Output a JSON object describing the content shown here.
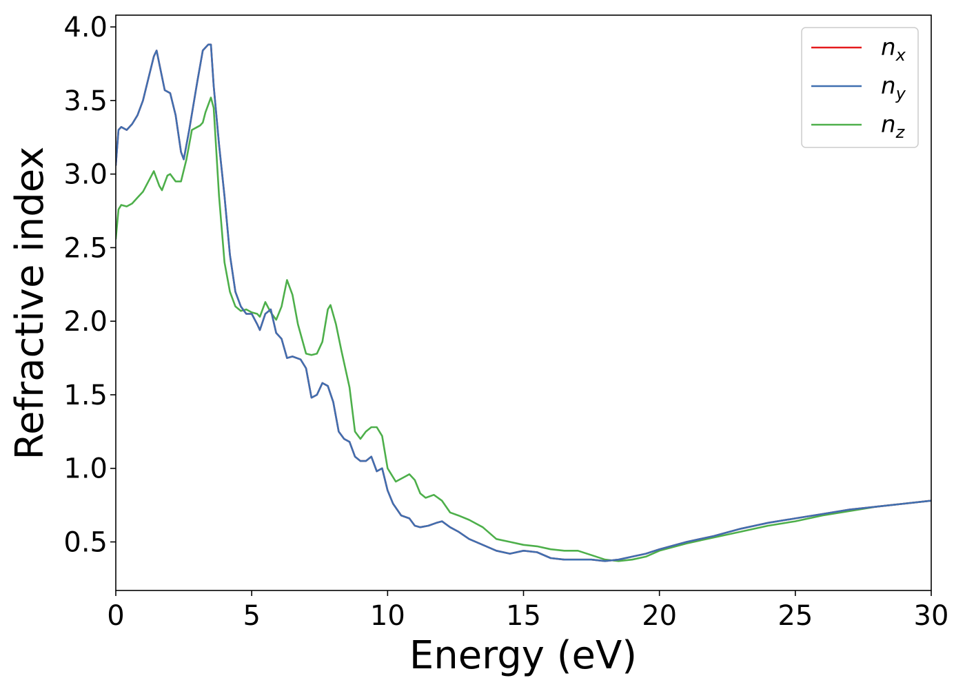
{
  "chart_data": {
    "type": "line",
    "title": "",
    "xlabel": "Energy (eV)",
    "ylabel": "Refractive index",
    "xlim": [
      0,
      30
    ],
    "ylim": [
      0.17,
      4.08
    ],
    "xticks": [
      0,
      5,
      10,
      15,
      20,
      25,
      30
    ],
    "xtick_labels": [
      "0",
      "5",
      "10",
      "15",
      "20",
      "25",
      "30"
    ],
    "yticks": [
      0.5,
      1.0,
      1.5,
      2.0,
      2.5,
      3.0,
      3.5,
      4.0
    ],
    "ytick_labels": [
      "0.5",
      "1.0",
      "1.5",
      "2.0",
      "2.5",
      "3.0",
      "3.5",
      "4.0"
    ],
    "grid": false,
    "legend_position": "top-right",
    "series": [
      {
        "name": "n",
        "sub": "x",
        "color": "#e41a1c",
        "x": [
          0,
          0.1,
          0.2,
          0.4,
          0.6,
          0.8,
          1.0,
          1.2,
          1.4,
          1.5,
          1.6,
          1.8,
          2.0,
          2.2,
          2.4,
          2.5,
          2.7,
          3.0,
          3.2,
          3.3,
          3.4,
          3.5,
          3.6,
          3.8,
          4.0,
          4.2,
          4.4,
          4.6,
          4.8,
          5.0,
          5.2,
          5.3,
          5.5,
          5.7,
          5.9,
          6.1,
          6.3,
          6.5,
          6.8,
          7.0,
          7.2,
          7.4,
          7.6,
          7.8,
          8.0,
          8.2,
          8.4,
          8.6,
          8.8,
          9.0,
          9.2,
          9.4,
          9.6,
          9.8,
          10.0,
          10.2,
          10.5,
          10.8,
          11.0,
          11.2,
          11.5,
          11.8,
          12.0,
          12.3,
          12.6,
          13.0,
          13.5,
          14.0,
          14.5,
          15.0,
          15.5,
          16.0,
          16.5,
          17.0,
          17.5,
          18.0,
          18.5,
          19.0,
          19.5,
          20.0,
          21.0,
          22.0,
          23.0,
          24.0,
          25.0,
          26.0,
          27.0,
          28.0,
          29.0,
          30.0
        ],
        "y": [
          3.06,
          3.3,
          3.32,
          3.3,
          3.34,
          3.4,
          3.5,
          3.65,
          3.8,
          3.84,
          3.75,
          3.57,
          3.55,
          3.4,
          3.15,
          3.1,
          3.3,
          3.63,
          3.84,
          3.86,
          3.88,
          3.88,
          3.6,
          3.2,
          2.85,
          2.45,
          2.2,
          2.1,
          2.05,
          2.05,
          1.98,
          1.94,
          2.05,
          2.08,
          1.92,
          1.88,
          1.75,
          1.76,
          1.74,
          1.68,
          1.48,
          1.5,
          1.58,
          1.56,
          1.45,
          1.25,
          1.2,
          1.18,
          1.08,
          1.05,
          1.05,
          1.08,
          0.98,
          1.0,
          0.85,
          0.76,
          0.68,
          0.66,
          0.61,
          0.6,
          0.61,
          0.63,
          0.64,
          0.6,
          0.57,
          0.52,
          0.48,
          0.44,
          0.42,
          0.44,
          0.43,
          0.39,
          0.38,
          0.38,
          0.38,
          0.37,
          0.38,
          0.4,
          0.42,
          0.45,
          0.5,
          0.54,
          0.59,
          0.63,
          0.66,
          0.69,
          0.72,
          0.74,
          0.76,
          0.78
        ]
      },
      {
        "name": "n",
        "sub": "y",
        "color": "#3f6fb0",
        "x": [
          0,
          0.1,
          0.2,
          0.4,
          0.6,
          0.8,
          1.0,
          1.2,
          1.4,
          1.5,
          1.6,
          1.8,
          2.0,
          2.2,
          2.4,
          2.5,
          2.7,
          3.0,
          3.2,
          3.3,
          3.4,
          3.5,
          3.6,
          3.8,
          4.0,
          4.2,
          4.4,
          4.6,
          4.8,
          5.0,
          5.2,
          5.3,
          5.5,
          5.7,
          5.9,
          6.1,
          6.3,
          6.5,
          6.8,
          7.0,
          7.2,
          7.4,
          7.6,
          7.8,
          8.0,
          8.2,
          8.4,
          8.6,
          8.8,
          9.0,
          9.2,
          9.4,
          9.6,
          9.8,
          10.0,
          10.2,
          10.5,
          10.8,
          11.0,
          11.2,
          11.5,
          11.8,
          12.0,
          12.3,
          12.6,
          13.0,
          13.5,
          14.0,
          14.5,
          15.0,
          15.5,
          16.0,
          16.5,
          17.0,
          17.5,
          18.0,
          18.5,
          19.0,
          19.5,
          20.0,
          21.0,
          22.0,
          23.0,
          24.0,
          25.0,
          26.0,
          27.0,
          28.0,
          29.0,
          30.0
        ],
        "y": [
          3.06,
          3.3,
          3.32,
          3.3,
          3.34,
          3.4,
          3.5,
          3.65,
          3.8,
          3.84,
          3.75,
          3.57,
          3.55,
          3.4,
          3.15,
          3.1,
          3.3,
          3.63,
          3.84,
          3.86,
          3.88,
          3.88,
          3.6,
          3.2,
          2.85,
          2.45,
          2.2,
          2.1,
          2.05,
          2.05,
          1.98,
          1.94,
          2.05,
          2.08,
          1.92,
          1.88,
          1.75,
          1.76,
          1.74,
          1.68,
          1.48,
          1.5,
          1.58,
          1.56,
          1.45,
          1.25,
          1.2,
          1.18,
          1.08,
          1.05,
          1.05,
          1.08,
          0.98,
          1.0,
          0.85,
          0.76,
          0.68,
          0.66,
          0.61,
          0.6,
          0.61,
          0.63,
          0.64,
          0.6,
          0.57,
          0.52,
          0.48,
          0.44,
          0.42,
          0.44,
          0.43,
          0.39,
          0.38,
          0.38,
          0.38,
          0.37,
          0.38,
          0.4,
          0.42,
          0.45,
          0.5,
          0.54,
          0.59,
          0.63,
          0.66,
          0.69,
          0.72,
          0.74,
          0.76,
          0.78
        ]
      },
      {
        "name": "n",
        "sub": "z",
        "color": "#4daf4a",
        "x": [
          0,
          0.1,
          0.2,
          0.4,
          0.6,
          0.8,
          1.0,
          1.2,
          1.4,
          1.6,
          1.7,
          1.9,
          2.0,
          2.2,
          2.4,
          2.6,
          2.8,
          3.0,
          3.1,
          3.2,
          3.3,
          3.5,
          3.6,
          3.8,
          4.0,
          4.2,
          4.4,
          4.6,
          4.8,
          5.0,
          5.2,
          5.3,
          5.5,
          5.7,
          5.9,
          6.1,
          6.3,
          6.5,
          6.7,
          7.0,
          7.2,
          7.4,
          7.6,
          7.8,
          7.9,
          8.1,
          8.3,
          8.6,
          8.8,
          9.0,
          9.2,
          9.4,
          9.6,
          9.8,
          10.0,
          10.3,
          10.6,
          10.8,
          11.0,
          11.2,
          11.4,
          11.7,
          12.0,
          12.3,
          12.6,
          13.0,
          13.5,
          14.0,
          14.5,
          15.0,
          15.5,
          16.0,
          16.5,
          17.0,
          17.5,
          18.0,
          18.5,
          19.0,
          19.5,
          20.0,
          21.0,
          22.0,
          23.0,
          24.0,
          25.0,
          26.0,
          27.0,
          28.0,
          29.0,
          30.0
        ],
        "y": [
          2.56,
          2.76,
          2.79,
          2.78,
          2.8,
          2.84,
          2.88,
          2.95,
          3.02,
          2.92,
          2.89,
          2.99,
          3.0,
          2.95,
          2.95,
          3.1,
          3.3,
          3.32,
          3.33,
          3.35,
          3.42,
          3.52,
          3.45,
          2.85,
          2.4,
          2.2,
          2.1,
          2.07,
          2.08,
          2.06,
          2.05,
          2.03,
          2.13,
          2.06,
          2.01,
          2.1,
          2.28,
          2.18,
          1.98,
          1.78,
          1.77,
          1.78,
          1.86,
          2.08,
          2.11,
          1.98,
          1.8,
          1.55,
          1.25,
          1.2,
          1.25,
          1.28,
          1.28,
          1.22,
          1.0,
          0.91,
          0.94,
          0.96,
          0.92,
          0.83,
          0.8,
          0.82,
          0.78,
          0.7,
          0.68,
          0.65,
          0.6,
          0.52,
          0.5,
          0.48,
          0.47,
          0.45,
          0.44,
          0.44,
          0.41,
          0.38,
          0.37,
          0.38,
          0.4,
          0.44,
          0.49,
          0.53,
          0.57,
          0.61,
          0.64,
          0.68,
          0.71,
          0.74,
          0.76,
          0.78
        ]
      }
    ]
  }
}
